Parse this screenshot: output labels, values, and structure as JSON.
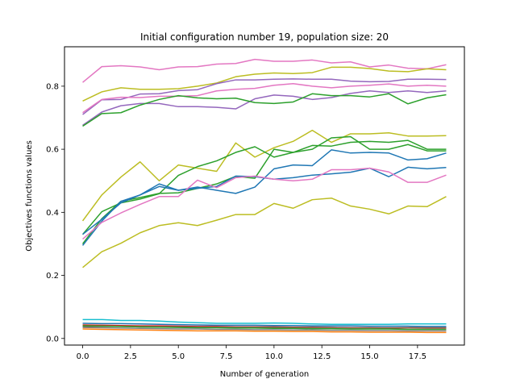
{
  "chart_data": {
    "type": "line",
    "title": "Initial configuration number 19, population size: 20",
    "xlabel": "Number of generation",
    "ylabel": "Objectives functions values",
    "xlim": [
      -0.95,
      19.95
    ],
    "ylim": [
      -0.021,
      0.925
    ],
    "xticks": [
      0,
      2.5,
      5,
      7.5,
      10,
      12.5,
      15,
      17.5
    ],
    "xtick_labels": [
      "0.0",
      "2.5",
      "5.0",
      "7.5",
      "10.0",
      "12.5",
      "15.0",
      "17.5"
    ],
    "yticks": [
      0,
      0.2,
      0.4,
      0.6,
      0.8
    ],
    "ytick_labels": [
      "0.0",
      "0.2",
      "0.4",
      "0.6",
      "0.8"
    ],
    "grid": false,
    "legend": "none",
    "x": [
      0,
      1,
      2,
      3,
      4,
      5,
      6,
      7,
      8,
      9,
      10,
      11,
      12,
      13,
      14,
      15,
      16,
      17,
      18,
      19
    ],
    "series": [
      {
        "color": "#e377c2",
        "values": [
          0.812,
          0.862,
          0.865,
          0.861,
          0.852,
          0.861,
          0.862,
          0.87,
          0.872,
          0.885,
          0.879,
          0.879,
          0.883,
          0.874,
          0.877,
          0.861,
          0.867,
          0.857,
          0.855,
          0.868
        ]
      },
      {
        "color": "#bcbd22",
        "values": [
          0.753,
          0.782,
          0.795,
          0.79,
          0.79,
          0.792,
          0.8,
          0.81,
          0.83,
          0.838,
          0.842,
          0.84,
          0.843,
          0.86,
          0.86,
          0.856,
          0.848,
          0.846,
          0.855,
          0.852
        ]
      },
      {
        "color": "#9467bd",
        "values": [
          0.71,
          0.757,
          0.758,
          0.775,
          0.776,
          0.786,
          0.789,
          0.808,
          0.82,
          0.82,
          0.822,
          0.823,
          0.822,
          0.822,
          0.816,
          0.814,
          0.815,
          0.822,
          0.822,
          0.821
        ]
      },
      {
        "color": "#e377c2",
        "values": [
          0.716,
          0.758,
          0.765,
          0.764,
          0.768,
          0.768,
          0.77,
          0.785,
          0.79,
          0.793,
          0.803,
          0.808,
          0.8,
          0.795,
          0.8,
          0.803,
          0.807,
          0.8,
          0.803,
          0.8
        ]
      },
      {
        "color": "#9467bd",
        "values": [
          0.676,
          0.718,
          0.738,
          0.745,
          0.745,
          0.735,
          0.735,
          0.733,
          0.728,
          0.76,
          0.772,
          0.768,
          0.758,
          0.764,
          0.777,
          0.785,
          0.78,
          0.785,
          0.78,
          0.785
        ]
      },
      {
        "color": "#2ca02c",
        "values": [
          0.673,
          0.713,
          0.716,
          0.74,
          0.758,
          0.77,
          0.763,
          0.76,
          0.762,
          0.748,
          0.745,
          0.75,
          0.776,
          0.77,
          0.77,
          0.766,
          0.776,
          0.744,
          0.763,
          0.773
        ]
      },
      {
        "color": "#bcbd22",
        "values": [
          0.373,
          0.455,
          0.512,
          0.56,
          0.5,
          0.55,
          0.54,
          0.53,
          0.62,
          0.575,
          0.605,
          0.625,
          0.66,
          0.622,
          0.649,
          0.649,
          0.652,
          0.642,
          0.642,
          0.643
        ]
      },
      {
        "color": "#2ca02c",
        "values": [
          0.33,
          0.402,
          0.43,
          0.442,
          0.459,
          0.517,
          0.545,
          0.563,
          0.59,
          0.608,
          0.575,
          0.59,
          0.612,
          0.61,
          0.622,
          0.625,
          0.622,
          0.628,
          0.6,
          0.6
        ]
      },
      {
        "color": "#2ca02c",
        "values": [
          0.3,
          0.38,
          0.435,
          0.447,
          0.46,
          0.462,
          0.476,
          0.49,
          0.514,
          0.508,
          0.6,
          0.59,
          0.6,
          0.636,
          0.64,
          0.6,
          0.6,
          0.615,
          0.595,
          0.595
        ]
      },
      {
        "color": "#1f77b4",
        "values": [
          0.295,
          0.372,
          0.435,
          0.455,
          0.482,
          0.47,
          0.48,
          0.47,
          0.46,
          0.48,
          0.538,
          0.55,
          0.548,
          0.598,
          0.588,
          0.59,
          0.588,
          0.566,
          0.57,
          0.588
        ]
      },
      {
        "color": "#1f77b4",
        "values": [
          0.33,
          0.378,
          0.43,
          0.455,
          0.49,
          0.47,
          0.476,
          0.482,
          0.515,
          0.513,
          0.505,
          0.51,
          0.518,
          0.522,
          0.527,
          0.54,
          0.513,
          0.543,
          0.538,
          0.542
        ]
      },
      {
        "color": "#e377c2",
        "values": [
          0.315,
          0.368,
          0.398,
          0.425,
          0.45,
          0.45,
          0.502,
          0.478,
          0.51,
          0.515,
          0.505,
          0.5,
          0.505,
          0.535,
          0.535,
          0.54,
          0.528,
          0.495,
          0.495,
          0.518
        ]
      },
      {
        "color": "#bcbd22",
        "values": [
          0.225,
          0.275,
          0.302,
          0.335,
          0.358,
          0.367,
          0.358,
          0.375,
          0.393,
          0.393,
          0.428,
          0.413,
          0.44,
          0.445,
          0.42,
          0.41,
          0.395,
          0.42,
          0.418,
          0.45
        ]
      },
      {
        "color": "#17becf",
        "values": [
          0.06,
          0.06,
          0.057,
          0.057,
          0.055,
          0.052,
          0.05,
          0.048,
          0.048,
          0.048,
          0.049,
          0.048,
          0.046,
          0.045,
          0.045,
          0.045,
          0.045,
          0.046,
          0.046,
          0.046
        ]
      },
      {
        "color": "#1f77b4",
        "values": [
          0.048,
          0.047,
          0.047,
          0.046,
          0.045,
          0.044,
          0.043,
          0.042,
          0.042,
          0.042,
          0.041,
          0.041,
          0.04,
          0.04,
          0.04,
          0.039,
          0.039,
          0.039,
          0.038,
          0.038
        ]
      },
      {
        "color": "#d62728",
        "values": [
          0.043,
          0.042,
          0.041,
          0.04,
          0.04,
          0.039,
          0.038,
          0.038,
          0.037,
          0.037,
          0.037,
          0.036,
          0.036,
          0.035,
          0.034,
          0.034,
          0.033,
          0.034,
          0.033,
          0.033
        ]
      },
      {
        "color": "#8c564b",
        "values": [
          0.038,
          0.038,
          0.038,
          0.037,
          0.037,
          0.037,
          0.036,
          0.036,
          0.036,
          0.036,
          0.036,
          0.035,
          0.035,
          0.035,
          0.034,
          0.034,
          0.034,
          0.034,
          0.034,
          0.034
        ]
      },
      {
        "color": "#2ca02c",
        "values": [
          0.04,
          0.039,
          0.038,
          0.037,
          0.036,
          0.035,
          0.034,
          0.034,
          0.033,
          0.033,
          0.032,
          0.032,
          0.031,
          0.031,
          0.03,
          0.03,
          0.03,
          0.029,
          0.029,
          0.029
        ]
      },
      {
        "color": "#7f7f7f",
        "values": [
          0.035,
          0.034,
          0.033,
          0.032,
          0.031,
          0.03,
          0.03,
          0.029,
          0.029,
          0.028,
          0.028,
          0.027,
          0.027,
          0.026,
          0.026,
          0.025,
          0.025,
          0.024,
          0.024,
          0.024
        ]
      },
      {
        "color": "#ff7f0e",
        "values": [
          0.03,
          0.029,
          0.028,
          0.027,
          0.026,
          0.025,
          0.024,
          0.024,
          0.024,
          0.023,
          0.023,
          0.022,
          0.022,
          0.021,
          0.021,
          0.02,
          0.02,
          0.02,
          0.019,
          0.019
        ]
      }
    ]
  }
}
